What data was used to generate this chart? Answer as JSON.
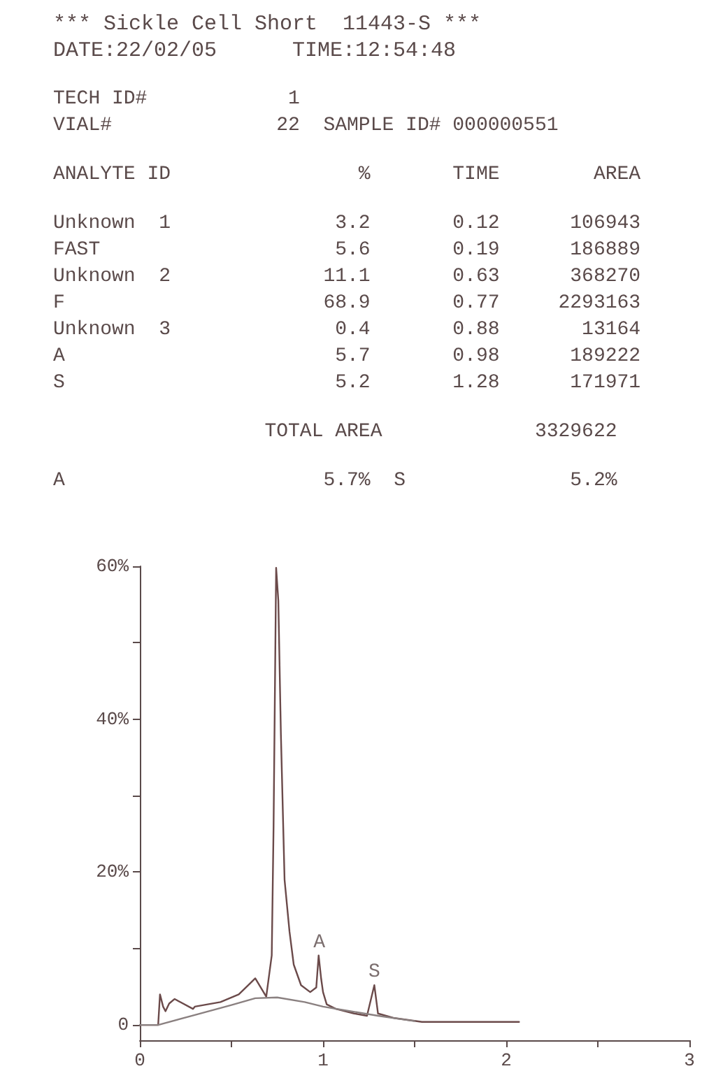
{
  "chart_data": {
    "type": "line",
    "title": "*** Sickle Cell Short  11443-S ***",
    "subtitle": "DATE:22/02/05      TIME:12:54:48",
    "annotations": [
      "TECH ID#            1",
      "VIAL#              22  SAMPLE ID# 000000551",
      "ANALYTE ID                %       TIME        AREA",
      "Unknown  1              3.2       0.12      106943",
      "FAST                    5.6       0.19      186889",
      "Unknown  2             11.1       0.63      368270",
      "F                      68.9       0.77     2293163",
      "Unknown  3              0.4       0.88       13164",
      "A                       5.7       0.98      189222",
      "S                       5.2       1.28      171971",
      "                  TOTAL AREA             3329622",
      "A                      5.7%  S              5.2%",
      {
        "text": "A",
        "x": 0.98,
        "y": 9.1
      },
      {
        "text": "S",
        "x": 1.28,
        "y": 5.2
      }
    ],
    "series": [
      {
        "color": "#6b4a4a",
        "x": [
          0,
          0.1,
          0.11,
          0.127,
          0.14,
          0.16,
          0.19,
          0.22,
          0.29,
          0.3,
          0.44,
          0.54,
          0.6,
          0.63,
          0.69,
          0.72,
          0.73,
          0.744,
          0.756,
          0.77,
          0.79,
          0.817,
          0.84,
          0.88,
          0.93,
          0.963,
          0.976,
          0.99,
          1.0,
          1.02,
          1.07,
          1.17,
          1.24,
          1.28,
          1.3,
          1.39,
          1.54,
          1.93,
          2.07
        ],
        "values": [
          0,
          0,
          4.0,
          2.4,
          1.8,
          2.8,
          3.4,
          3.0,
          2.1,
          2.4,
          3.0,
          4.0,
          5.4,
          6.1,
          3.7,
          9.1,
          26,
          59.8,
          55.5,
          38,
          19,
          12.2,
          7.9,
          5.2,
          4.3,
          4.9,
          9.1,
          6.0,
          4.3,
          2.7,
          2.1,
          1.5,
          1.2,
          5.2,
          1.5,
          0.9,
          0.4,
          0.4,
          0.4
        ]
      },
      {
        "color": "#8a8080",
        "x": [
          0,
          0.1,
          0.3,
          0.5,
          0.63,
          0.75,
          0.9,
          1.0,
          1.15,
          1.3,
          1.5
        ],
        "values": [
          0,
          0,
          1.3,
          2.6,
          3.5,
          3.6,
          3.0,
          2.4,
          1.8,
          1.2,
          0.5
        ]
      }
    ],
    "xlim": [
      0,
      3
    ],
    "xticks": [
      0,
      {
        "value": 0.5,
        "label": null
      },
      1,
      {
        "value": 1.5,
        "label": null
      },
      2,
      {
        "value": 2.5,
        "label": null
      },
      3
    ],
    "ylim": [
      -2,
      60
    ],
    "yticks": [
      {
        "value": 0,
        "label": "0"
      },
      {
        "value": 10,
        "label": null
      },
      {
        "value": 20,
        "label": "20%"
      },
      {
        "value": 30,
        "label": null
      },
      {
        "value": 40,
        "label": "40%"
      },
      {
        "value": 50,
        "label": null
      },
      {
        "value": 60,
        "label": "60%"
      }
    ],
    "grid": false,
    "marker": "none",
    "line_style": "solid"
  }
}
